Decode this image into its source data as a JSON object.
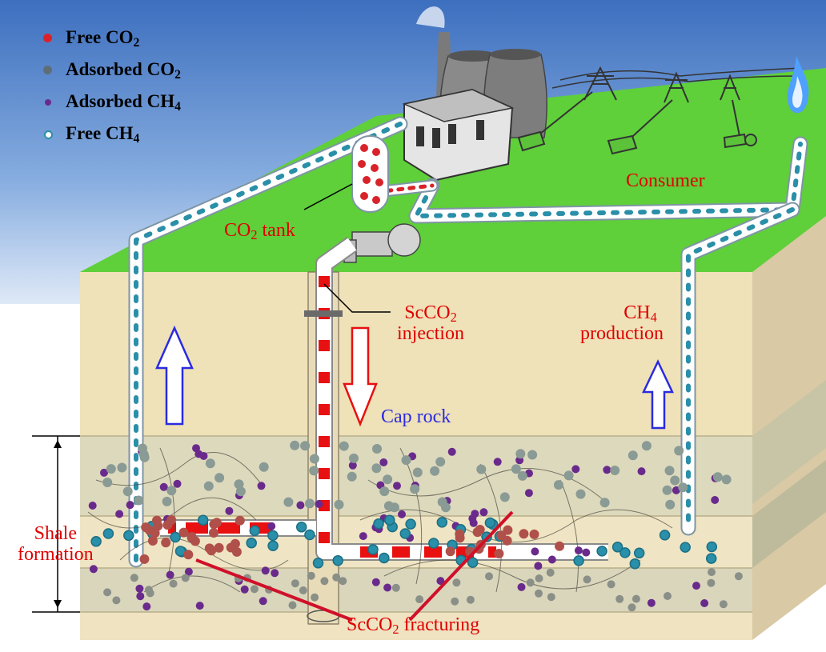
{
  "legend": {
    "items": [
      {
        "name": "Free",
        "formula": "CO",
        "sub": "2",
        "color": "#d8232a"
      },
      {
        "name": "Adsorbed",
        "formula": "CO",
        "sub": "2",
        "color": "#5f6e76"
      },
      {
        "name": "Adsorbed",
        "formula": "CH",
        "sub": "4",
        "color": "#6a2a8c"
      },
      {
        "name": "Free",
        "formula": "CH",
        "sub": "4",
        "color": "#2a8fa8"
      }
    ]
  },
  "labels": {
    "co2_tank": {
      "pre": "CO",
      "sub": "2",
      "post": " tank"
    },
    "consumer": "Consumer",
    "scco2_injection": {
      "pre": "ScCO",
      "sub": "2",
      "line2": "injection"
    },
    "ch4_production": {
      "pre": "CH",
      "sub": "4",
      "line2": "production"
    },
    "cap_rock": "Cap rock",
    "shale_formation": {
      "line1": "Shale",
      "line2": "formation"
    },
    "scco2_fracturing": {
      "pre": "ScCO",
      "sub": "2",
      "post": " fracturing"
    }
  },
  "colors": {
    "free_co2": "#d8232a",
    "adsorbed_co2": "#5f6e76",
    "adsorbed_ch4": "#6a2a8c",
    "free_ch4": "#2a8fa8",
    "label_red": "#e00000",
    "label_blue": "#2a2ae0",
    "ground": "#5fcf3a",
    "sky": "#3f78c4"
  }
}
